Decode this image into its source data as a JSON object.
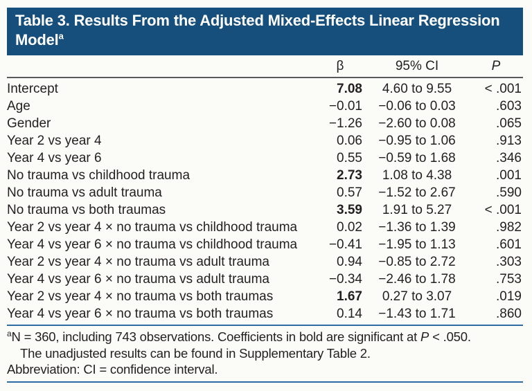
{
  "title": {
    "line1": "Table 3. Results From the Adjusted Mixed-Effects Linear Regression",
    "line2": "Model",
    "superscript": "a"
  },
  "table": {
    "columns": {
      "beta": "β",
      "ci": "95% CI",
      "p": "P"
    },
    "rows": [
      {
        "label": "Intercept",
        "beta": "7.08",
        "bold": true,
        "ci": "4.60 to 9.55",
        "p": "< .001"
      },
      {
        "label": "Age",
        "beta": "−0.01",
        "bold": false,
        "ci": "−0.06 to 0.03",
        "p": ".603"
      },
      {
        "label": "Gender",
        "beta": "−1.26",
        "bold": false,
        "ci": "−2.60 to 0.08",
        "p": ".065"
      },
      {
        "label": "Year 2 vs year 4",
        "beta": "0.06",
        "bold": false,
        "ci": "−0.95 to 1.06",
        "p": ".913"
      },
      {
        "label": "Year 4 vs year 6",
        "beta": "0.55",
        "bold": false,
        "ci": "−0.59 to 1.68",
        "p": ".346"
      },
      {
        "label": "No trauma vs childhood trauma",
        "beta": "2.73",
        "bold": true,
        "ci": "1.08 to 4.38",
        "p": ".001"
      },
      {
        "label": "No trauma vs adult trauma",
        "beta": "0.57",
        "bold": false,
        "ci": "−1.52 to 2.67",
        "p": ".590"
      },
      {
        "label": "No trauma vs both traumas",
        "beta": "3.59",
        "bold": true,
        "ci": "1.91 to 5.27",
        "p": "< .001"
      },
      {
        "label": "Year 2 vs year 4 × no trauma vs childhood trauma",
        "beta": "0.02",
        "bold": false,
        "ci": "−1.36 to 1.39",
        "p": ".982"
      },
      {
        "label": "Year 4 vs year 6 × no trauma vs childhood trauma",
        "beta": "−0.41",
        "bold": false,
        "ci": "−1.95 to 1.13",
        "p": ".601"
      },
      {
        "label": "Year 2 vs year 4 × no trauma vs adult trauma",
        "beta": "0.94",
        "bold": false,
        "ci": "−0.85 to 2.72",
        "p": ".303"
      },
      {
        "label": "Year 4 vs year 6 × no trauma vs adult trauma",
        "beta": "−0.34",
        "bold": false,
        "ci": "−2.46 to 1.78",
        "p": ".753"
      },
      {
        "label": "Year 2 vs year 4 × no trauma vs both traumas",
        "beta": "1.67",
        "bold": true,
        "ci": "0.27 to 3.07",
        "p": ".019"
      },
      {
        "label": "Year 4 vs year 6 × no trauma vs both traumas",
        "beta": "0.14",
        "bold": false,
        "ci": "−1.43 to 1.71",
        "p": ".860"
      }
    ]
  },
  "footnotes": {
    "line1_sup": "a",
    "line1_pre": "N = 360, including 743 observations. Coefficients in bold are significant at ",
    "line1_italic": "P",
    "line1_post": " < .050.",
    "line2": "The unadjusted results can be found in Supplementary Table 2.",
    "line3": "Abbreviation: CI = confidence interval."
  },
  "colors": {
    "header_bg": "#164f7b",
    "rule_blue": "#2e6ba3",
    "separator_gray": "#58595b",
    "text": "#231f20",
    "title_text": "#ffffff"
  }
}
